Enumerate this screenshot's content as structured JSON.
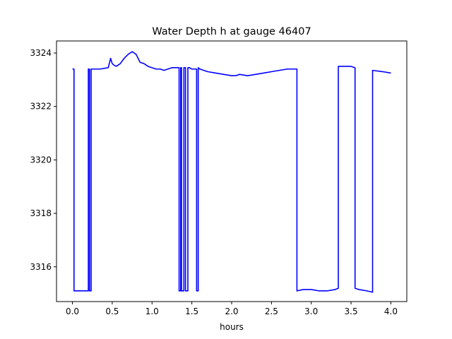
{
  "chart_data": {
    "type": "line",
    "title": "Water Depth h at gauge 46407",
    "xlabel": "hours",
    "ylabel": "",
    "xlim": [
      -0.2,
      4.2
    ],
    "ylim": [
      3314.7,
      3324.45
    ],
    "xticks": [
      0.0,
      0.5,
      1.0,
      1.5,
      2.0,
      2.5,
      3.0,
      3.5,
      4.0
    ],
    "xtick_labels": [
      "0.0",
      "0.5",
      "1.0",
      "1.5",
      "2.0",
      "2.5",
      "3.0",
      "3.5",
      "4.0"
    ],
    "yticks": [
      3316,
      3318,
      3320,
      3322,
      3324
    ],
    "ytick_labels": [
      "3316",
      "3318",
      "3320",
      "3322",
      "3324"
    ],
    "grid": false,
    "series": [
      {
        "color": "#0000ff",
        "x": [
          0.0,
          0.02,
          0.02,
          0.2,
          0.2,
          0.215,
          0.215,
          0.235,
          0.235,
          0.28,
          0.28,
          0.35,
          0.45,
          0.48,
          0.5,
          0.52,
          0.55,
          0.6,
          0.65,
          0.7,
          0.75,
          0.8,
          0.85,
          0.9,
          0.95,
          1.0,
          1.05,
          1.1,
          1.15,
          1.2,
          1.25,
          1.3,
          1.34,
          1.34,
          1.36,
          1.36,
          1.37,
          1.37,
          1.4,
          1.4,
          1.42,
          1.42,
          1.45,
          1.45,
          1.47,
          1.47,
          1.5,
          1.56,
          1.56,
          1.58,
          1.58,
          1.6,
          1.7,
          1.8,
          1.9,
          2.0,
          2.05,
          2.1,
          2.2,
          2.3,
          2.4,
          2.5,
          2.6,
          2.7,
          2.82,
          2.82,
          2.9,
          3.0,
          3.1,
          3.2,
          3.3,
          3.34,
          3.34,
          3.4,
          3.5,
          3.55,
          3.55,
          3.6,
          3.7,
          3.77,
          3.77,
          3.9,
          4.0
        ],
        "y": [
          3323.4,
          3323.4,
          3315.1,
          3315.1,
          3323.4,
          3323.4,
          3315.1,
          3315.1,
          3323.4,
          3323.4,
          3323.4,
          3323.4,
          3323.45,
          3323.8,
          3323.6,
          3323.55,
          3323.5,
          3323.6,
          3323.8,
          3323.95,
          3324.05,
          3323.95,
          3323.65,
          3323.6,
          3323.5,
          3323.45,
          3323.4,
          3323.4,
          3323.35,
          3323.4,
          3323.45,
          3323.45,
          3323.45,
          3315.1,
          3315.1,
          3323.45,
          3323.45,
          3315.1,
          3315.1,
          3323.45,
          3323.45,
          3315.1,
          3315.1,
          3323.45,
          3323.45,
          3323.45,
          3323.4,
          3323.4,
          3315.1,
          3315.1,
          3323.45,
          3323.4,
          3323.3,
          3323.25,
          3323.2,
          3323.15,
          3323.15,
          3323.2,
          3323.15,
          3323.2,
          3323.25,
          3323.3,
          3323.35,
          3323.4,
          3323.4,
          3315.1,
          3315.15,
          3315.15,
          3315.1,
          3315.1,
          3315.15,
          3315.2,
          3323.5,
          3323.5,
          3323.5,
          3323.45,
          3315.2,
          3315.15,
          3315.1,
          3315.05,
          3323.35,
          3323.3,
          3323.25
        ]
      }
    ]
  }
}
